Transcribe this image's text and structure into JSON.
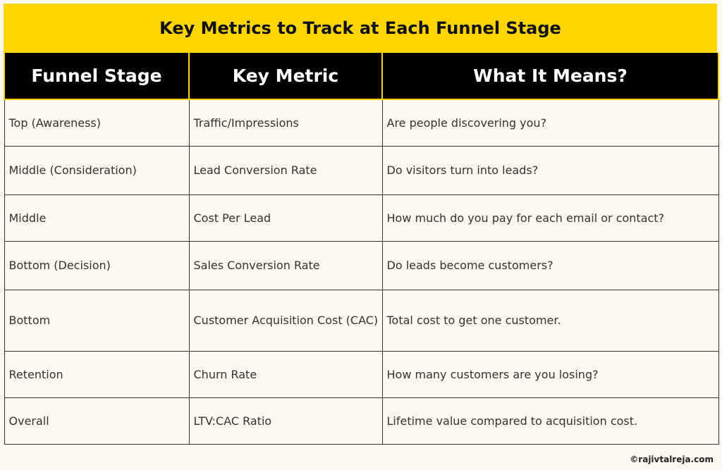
{
  "title": "Key Metrics to Track at Each Funnel Stage",
  "table": {
    "headers": [
      "Funnel Stage",
      "Key Metric",
      "What It Means?"
    ],
    "rows": [
      [
        "Top (Awareness)",
        "Traffic/Impressions",
        "Are people discovering you?"
      ],
      [
        "Middle (Consideration)",
        "Lead Conversion Rate",
        "Do visitors turn into leads?"
      ],
      [
        "Middle",
        "Cost Per Lead",
        "How much do you pay for each email or contact?"
      ],
      [
        "Bottom (Decision)",
        "Sales Conversion Rate",
        "Do leads become customers?"
      ],
      [
        "Bottom",
        "Customer Acquisition Cost (CAC)",
        "Total cost to get one customer."
      ],
      [
        "Retention",
        "Churn Rate",
        "How many customers are you losing?"
      ],
      [
        "Overall",
        "LTV:CAC Ratio",
        "Lifetime value compared to acquisition cost."
      ]
    ]
  },
  "footer": {
    "copyright": "©rajivtalreja.com"
  },
  "colors": {
    "accent": "#ffd500",
    "header_bg": "#000000",
    "page_bg": "#fdf8ef"
  }
}
